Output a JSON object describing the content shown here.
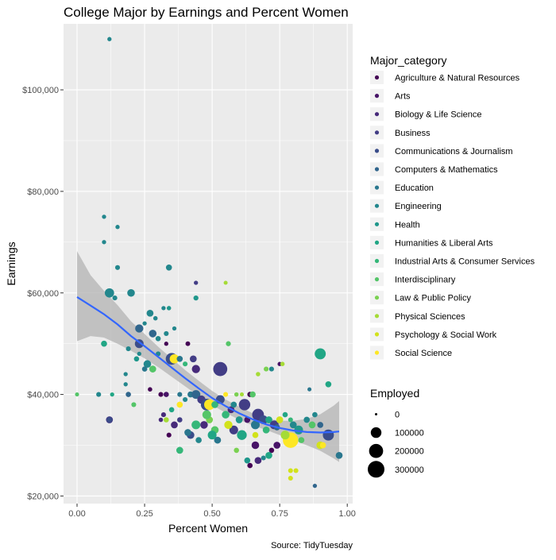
{
  "chart_data": {
    "type": "scatter",
    "title": "College Major by Earnings and Percent Women",
    "xlabel": "Percent Women",
    "ylabel": "Earnings",
    "caption": "Source: TidyTuesday",
    "xlim": [
      -0.05,
      1.02
    ],
    "ylim": [
      18500,
      113000
    ],
    "x_ticks": [
      0,
      0.25,
      0.5,
      0.75,
      1.0
    ],
    "x_tick_labels": [
      "0.00",
      "0.25",
      "0.50",
      "0.75",
      "1.00"
    ],
    "y_ticks": [
      20000,
      40000,
      60000,
      80000,
      100000
    ],
    "y_tick_labels": [
      "$20,000",
      "$40,000",
      "$60,000",
      "$80,000",
      "$100,000"
    ],
    "grid": true,
    "legend_placement": "right",
    "colors": {
      "panel_background": "#ebebeb",
      "grid": "#ffffff",
      "smooth_line": "#3366ff",
      "smooth_band": "#b3b3b3",
      "legend_key_background": "#f2f2f2"
    },
    "color_legend": {
      "title": "Major_category",
      "entries": [
        {
          "label": "Agriculture & Natural Resources",
          "color": "#440154"
        },
        {
          "label": "Arts",
          "color": "#481467"
        },
        {
          "label": "Biology & Life Science",
          "color": "#472a7a"
        },
        {
          "label": "Business",
          "color": "#423d85"
        },
        {
          "label": "Communications & Journalism",
          "color": "#3a4d8a"
        },
        {
          "label": "Computers & Mathematics",
          "color": "#31668d"
        },
        {
          "label": "Education",
          "color": "#2a778e"
        },
        {
          "label": "Engineering",
          "color": "#23878d"
        },
        {
          "label": "Health",
          "color": "#1f978b"
        },
        {
          "label": "Humanities & Liberal Arts",
          "color": "#21a685"
        },
        {
          "label": "Industrial Arts & Consumer Services",
          "color": "#35b779"
        },
        {
          "label": "Interdisciplinary",
          "color": "#54c568"
        },
        {
          "label": "Law & Public Policy",
          "color": "#7ad151"
        },
        {
          "label": "Physical Sciences",
          "color": "#a5db36"
        },
        {
          "label": "Psychology & Social Work",
          "color": "#d2e21b"
        },
        {
          "label": "Social Science",
          "color": "#fde725"
        }
      ]
    },
    "size_legend": {
      "title": "Employed",
      "entries": [
        {
          "label": "0",
          "value": 0
        },
        {
          "label": "100000",
          "value": 100000
        },
        {
          "label": "200000",
          "value": 200000
        },
        {
          "label": "300000",
          "value": 300000
        }
      ]
    },
    "smooth": {
      "x": [
        0.0,
        0.05,
        0.1,
        0.15,
        0.2,
        0.25,
        0.3,
        0.35,
        0.4,
        0.45,
        0.5,
        0.55,
        0.6,
        0.65,
        0.7,
        0.75,
        0.8,
        0.85,
        0.9,
        0.95,
        0.97
      ],
      "y": [
        59200,
        57500,
        55800,
        53800,
        51500,
        49500,
        47400,
        45300,
        43200,
        41200,
        39300,
        37700,
        36300,
        35100,
        34100,
        33400,
        32900,
        32600,
        32500,
        32600,
        32700
      ],
      "lower": [
        50500,
        51500,
        51200,
        50000,
        48600,
        47100,
        45400,
        43500,
        41600,
        39700,
        37900,
        36400,
        35000,
        33900,
        33000,
        32000,
        31000,
        30000,
        28900,
        27400,
        26700
      ],
      "upper": [
        68200,
        63500,
        60400,
        57600,
        54400,
        51900,
        49400,
        47100,
        44800,
        42700,
        40700,
        39000,
        37600,
        36300,
        35300,
        34800,
        34800,
        35200,
        36100,
        37800,
        38700
      ]
    },
    "points": [
      {
        "x": 0.12,
        "y": 110000,
        "c": 7,
        "e": 5000
      },
      {
        "x": 0.1,
        "y": 75000,
        "c": 7,
        "e": 5000
      },
      {
        "x": 0.15,
        "y": 73000,
        "c": 7,
        "e": 5000
      },
      {
        "x": 0.1,
        "y": 70000,
        "c": 7,
        "e": 5000
      },
      {
        "x": 0.15,
        "y": 65000,
        "c": 7,
        "e": 9000
      },
      {
        "x": 0.34,
        "y": 65000,
        "c": 7,
        "e": 20000
      },
      {
        "x": 0.44,
        "y": 62000,
        "c": 3,
        "e": 5000
      },
      {
        "x": 0.55,
        "y": 62000,
        "c": 13,
        "e": 4000
      },
      {
        "x": 0.12,
        "y": 60000,
        "c": 7,
        "e": 70000
      },
      {
        "x": 0.2,
        "y": 60000,
        "c": 7,
        "e": 40000
      },
      {
        "x": 0.14,
        "y": 59000,
        "c": 7,
        "e": 9000
      },
      {
        "x": 0.44,
        "y": 59000,
        "c": 8,
        "e": 10000
      },
      {
        "x": 0.32,
        "y": 57000,
        "c": 7,
        "e": 5000
      },
      {
        "x": 0.34,
        "y": 57000,
        "c": 8,
        "e": 6000
      },
      {
        "x": 0.27,
        "y": 56000,
        "c": 7,
        "e": 30000
      },
      {
        "x": 0.29,
        "y": 55000,
        "c": 7,
        "e": 6000
      },
      {
        "x": 0.25,
        "y": 54000,
        "c": 7,
        "e": 5000
      },
      {
        "x": 0.23,
        "y": 53000,
        "c": 5,
        "e": 50000
      },
      {
        "x": 0.28,
        "y": 52000,
        "c": 5,
        "e": 40000
      },
      {
        "x": 0.3,
        "y": 51000,
        "c": 7,
        "e": 12000
      },
      {
        "x": 0.33,
        "y": 52000,
        "c": 7,
        "e": 9000
      },
      {
        "x": 0.36,
        "y": 53000,
        "c": 7,
        "e": 5000
      },
      {
        "x": 0.1,
        "y": 50000,
        "c": 9,
        "e": 20000
      },
      {
        "x": 0.23,
        "y": 50000,
        "c": 4,
        "e": 60000
      },
      {
        "x": 0.33,
        "y": 50000,
        "c": 0,
        "e": 5000
      },
      {
        "x": 0.41,
        "y": 50000,
        "c": 0,
        "e": 8000
      },
      {
        "x": 0.56,
        "y": 50000,
        "c": 11,
        "e": 10000
      },
      {
        "x": 0.19,
        "y": 49000,
        "c": 7,
        "e": 9000
      },
      {
        "x": 0.3,
        "y": 48000,
        "c": 7,
        "e": 9000
      },
      {
        "x": 0.22,
        "y": 47000,
        "c": 8,
        "e": 12000
      },
      {
        "x": 0.35,
        "y": 47000,
        "c": 4,
        "e": 130000
      },
      {
        "x": 0.36,
        "y": 47000,
        "c": 15,
        "e": 70000
      },
      {
        "x": 0.38,
        "y": 47000,
        "c": 6,
        "e": 20000
      },
      {
        "x": 0.43,
        "y": 47000,
        "c": 3,
        "e": 30000
      },
      {
        "x": 0.26,
        "y": 46000,
        "c": 7,
        "e": 40000
      },
      {
        "x": 0.4,
        "y": 46000,
        "c": 10,
        "e": 9000
      },
      {
        "x": 0.53,
        "y": 45000,
        "c": 3,
        "e": 200000
      },
      {
        "x": 0.44,
        "y": 45000,
        "c": 2,
        "e": 50000
      },
      {
        "x": 0.28,
        "y": 45000,
        "c": 11,
        "e": 30000
      },
      {
        "x": 0.25,
        "y": 45000,
        "c": 6,
        "e": 12000
      },
      {
        "x": 0.23,
        "y": 48000,
        "c": 7,
        "e": 5000
      },
      {
        "x": 0.18,
        "y": 44000,
        "c": 7,
        "e": 5000
      },
      {
        "x": 0.7,
        "y": 45000,
        "c": 12,
        "e": 9000
      },
      {
        "x": 0.72,
        "y": 45000,
        "c": 7,
        "e": 9000
      },
      {
        "x": 0.75,
        "y": 46000,
        "c": 1,
        "e": 5000
      },
      {
        "x": 0.76,
        "y": 46000,
        "c": 13,
        "e": 6000
      },
      {
        "x": 0.67,
        "y": 44000,
        "c": 13,
        "e": 6000
      },
      {
        "x": 0.9,
        "y": 48000,
        "c": 9,
        "e": 110000
      },
      {
        "x": 0.93,
        "y": 42000,
        "c": 9,
        "e": 20000
      },
      {
        "x": 0.18,
        "y": 42000,
        "c": 7,
        "e": 5000
      },
      {
        "x": 0.86,
        "y": 41000,
        "c": 6,
        "e": 4000
      },
      {
        "x": 0.19,
        "y": 40000,
        "c": 5,
        "e": 12000
      },
      {
        "x": 0.13,
        "y": 40000,
        "c": 9,
        "e": 5000
      },
      {
        "x": 0.08,
        "y": 40000,
        "c": 7,
        "e": 9000
      },
      {
        "x": 0.0,
        "y": 40000,
        "c": 11,
        "e": 4000
      },
      {
        "x": 0.27,
        "y": 41000,
        "c": 0,
        "e": 6000
      },
      {
        "x": 0.31,
        "y": 40000,
        "c": 0,
        "e": 9000
      },
      {
        "x": 0.33,
        "y": 40000,
        "c": 1,
        "e": 12000
      },
      {
        "x": 0.38,
        "y": 40000,
        "c": 6,
        "e": 9000
      },
      {
        "x": 0.4,
        "y": 39000,
        "c": 7,
        "e": 9000
      },
      {
        "x": 0.42,
        "y": 40000,
        "c": 6,
        "e": 20000
      },
      {
        "x": 0.44,
        "y": 40000,
        "c": 5,
        "e": 60000
      },
      {
        "x": 0.46,
        "y": 39000,
        "c": 3,
        "e": 50000
      },
      {
        "x": 0.48,
        "y": 38000,
        "c": 4,
        "e": 130000
      },
      {
        "x": 0.49,
        "y": 38000,
        "c": 15,
        "e": 100000
      },
      {
        "x": 0.51,
        "y": 38000,
        "c": 10,
        "e": 30000
      },
      {
        "x": 0.53,
        "y": 39000,
        "c": 4,
        "e": 60000
      },
      {
        "x": 0.55,
        "y": 40000,
        "c": 15,
        "e": 9000
      },
      {
        "x": 0.57,
        "y": 37000,
        "c": 2,
        "e": 30000
      },
      {
        "x": 0.59,
        "y": 40000,
        "c": 12,
        "e": 6000
      },
      {
        "x": 0.61,
        "y": 40000,
        "c": 13,
        "e": 4000
      },
      {
        "x": 0.62,
        "y": 38000,
        "c": 3,
        "e": 120000
      },
      {
        "x": 0.64,
        "y": 40000,
        "c": 0,
        "e": 12000
      },
      {
        "x": 0.65,
        "y": 40000,
        "c": 11,
        "e": 20000
      },
      {
        "x": 0.67,
        "y": 36000,
        "c": 3,
        "e": 130000
      },
      {
        "x": 0.69,
        "y": 35000,
        "c": 4,
        "e": 60000
      },
      {
        "x": 0.71,
        "y": 35000,
        "c": 9,
        "e": 30000
      },
      {
        "x": 0.73,
        "y": 34000,
        "c": 3,
        "e": 60000
      },
      {
        "x": 0.75,
        "y": 35000,
        "c": 14,
        "e": 30000
      },
      {
        "x": 0.77,
        "y": 36000,
        "c": 9,
        "e": 12000
      },
      {
        "x": 0.79,
        "y": 35000,
        "c": 10,
        "e": 9000
      },
      {
        "x": 0.8,
        "y": 34000,
        "c": 7,
        "e": 30000
      },
      {
        "x": 0.82,
        "y": 33000,
        "c": 8,
        "e": 60000
      },
      {
        "x": 0.85,
        "y": 35000,
        "c": 7,
        "e": 20000
      },
      {
        "x": 0.87,
        "y": 34000,
        "c": 11,
        "e": 30000
      },
      {
        "x": 0.88,
        "y": 36000,
        "c": 7,
        "e": 12000
      },
      {
        "x": 0.9,
        "y": 34000,
        "c": 5,
        "e": 20000
      },
      {
        "x": 0.93,
        "y": 32000,
        "c": 4,
        "e": 110000
      },
      {
        "x": 0.97,
        "y": 28000,
        "c": 6,
        "e": 30000
      },
      {
        "x": 0.9,
        "y": 30000,
        "c": 14,
        "e": 40000
      },
      {
        "x": 0.91,
        "y": 30000,
        "c": 15,
        "e": 20000
      },
      {
        "x": 0.88,
        "y": 22000,
        "c": 5,
        "e": 5000
      },
      {
        "x": 0.79,
        "y": 25000,
        "c": 14,
        "e": 9000
      },
      {
        "x": 0.81,
        "y": 25000,
        "c": 14,
        "e": 9000
      },
      {
        "x": 0.79,
        "y": 23500,
        "c": 14,
        "e": 9000
      },
      {
        "x": 0.79,
        "y": 31000,
        "c": 15,
        "e": 250000
      },
      {
        "x": 0.77,
        "y": 32000,
        "c": 13,
        "e": 60000
      },
      {
        "x": 0.74,
        "y": 30000,
        "c": 1,
        "e": 30000
      },
      {
        "x": 0.72,
        "y": 29000,
        "c": 0,
        "e": 12000
      },
      {
        "x": 0.71,
        "y": 28000,
        "c": 9,
        "e": 30000
      },
      {
        "x": 0.69,
        "y": 27500,
        "c": 7,
        "e": 9000
      },
      {
        "x": 0.67,
        "y": 27000,
        "c": 2,
        "e": 30000
      },
      {
        "x": 0.66,
        "y": 30000,
        "c": 1,
        "e": 40000
      },
      {
        "x": 0.64,
        "y": 26000,
        "c": 0,
        "e": 12000
      },
      {
        "x": 0.63,
        "y": 27000,
        "c": 8,
        "e": 20000
      },
      {
        "x": 0.61,
        "y": 32000,
        "c": 9,
        "e": 80000
      },
      {
        "x": 0.59,
        "y": 29000,
        "c": 12,
        "e": 12000
      },
      {
        "x": 0.58,
        "y": 33000,
        "c": 3,
        "e": 60000
      },
      {
        "x": 0.56,
        "y": 34000,
        "c": 14,
        "e": 50000
      },
      {
        "x": 0.55,
        "y": 36000,
        "c": 10,
        "e": 40000
      },
      {
        "x": 0.52,
        "y": 31000,
        "c": 6,
        "e": 30000
      },
      {
        "x": 0.51,
        "y": 33000,
        "c": 11,
        "e": 40000
      },
      {
        "x": 0.5,
        "y": 32000,
        "c": 9,
        "e": 60000
      },
      {
        "x": 0.49,
        "y": 35000,
        "c": 12,
        "e": 30000
      },
      {
        "x": 0.48,
        "y": 36000,
        "c": 11,
        "e": 60000
      },
      {
        "x": 0.47,
        "y": 34000,
        "c": 2,
        "e": 40000
      },
      {
        "x": 0.45,
        "y": 31000,
        "c": 7,
        "e": 20000
      },
      {
        "x": 0.44,
        "y": 34000,
        "c": 10,
        "e": 60000
      },
      {
        "x": 0.42,
        "y": 32000,
        "c": 4,
        "e": 40000
      },
      {
        "x": 0.41,
        "y": 32500,
        "c": 6,
        "e": 30000
      },
      {
        "x": 0.38,
        "y": 29000,
        "c": 10,
        "e": 30000
      },
      {
        "x": 0.38,
        "y": 35000,
        "c": 3,
        "e": 12000
      },
      {
        "x": 0.36,
        "y": 34000,
        "c": 2,
        "e": 30000
      },
      {
        "x": 0.34,
        "y": 32000,
        "c": 0,
        "e": 9000
      },
      {
        "x": 0.33,
        "y": 35000,
        "c": 13,
        "e": 12000
      },
      {
        "x": 0.32,
        "y": 36000,
        "c": 2,
        "e": 9000
      },
      {
        "x": 0.35,
        "y": 37000,
        "c": 9,
        "e": 12000
      },
      {
        "x": 0.38,
        "y": 38000,
        "c": 15,
        "e": 20000
      },
      {
        "x": 0.31,
        "y": 35000,
        "c": 2,
        "e": 6000
      },
      {
        "x": 0.12,
        "y": 35000,
        "c": 3,
        "e": 30000
      },
      {
        "x": 0.12,
        "y": 35000,
        "c": 4,
        "e": 12000
      },
      {
        "x": 0.21,
        "y": 38000,
        "c": 11,
        "e": 9000
      },
      {
        "x": 0.6,
        "y": 35000,
        "c": 8,
        "e": 30000
      },
      {
        "x": 0.66,
        "y": 34000,
        "c": 6,
        "e": 60000
      },
      {
        "x": 0.7,
        "y": 33000,
        "c": 10,
        "e": 30000
      },
      {
        "x": 0.74,
        "y": 33500,
        "c": 5,
        "e": 20000
      },
      {
        "x": 0.83,
        "y": 31000,
        "c": 11,
        "e": 20000
      },
      {
        "x": 0.66,
        "y": 32000,
        "c": 14,
        "e": 20000
      },
      {
        "x": 0.58,
        "y": 38000,
        "c": 7,
        "e": 20000
      },
      {
        "x": 0.63,
        "y": 35000,
        "c": 1,
        "e": 20000
      }
    ]
  }
}
